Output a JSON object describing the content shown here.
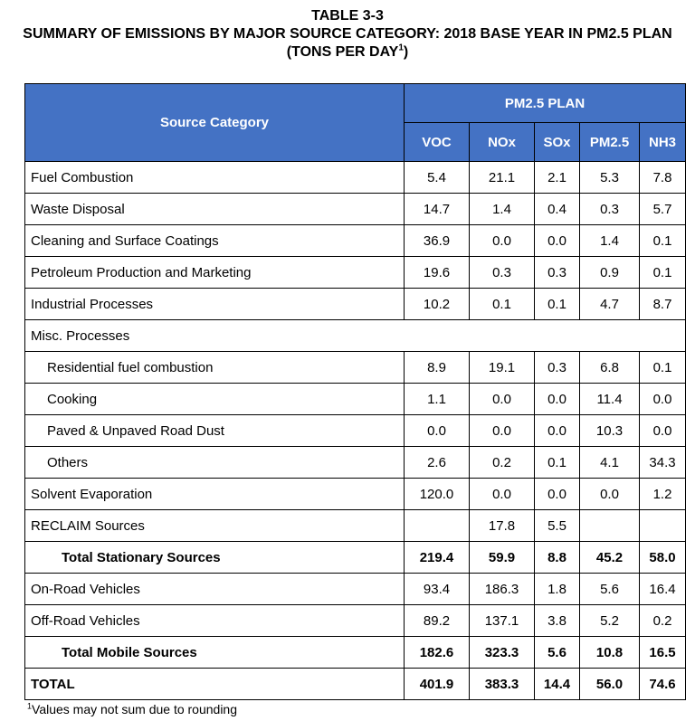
{
  "title": {
    "line1": "TABLE 3-3",
    "line2": "SUMMARY OF EMISSIONS BY MAJOR SOURCE CATEGORY: 2018 BASE YEAR IN PM2.5 PLAN",
    "line3_prefix": "(TONS PER DAY",
    "line3_sup": "1",
    "line3_suffix": ")"
  },
  "header": {
    "source_category": "Source Category",
    "group": "PM2.5 PLAN",
    "columns": [
      "VOC",
      "NOx",
      "SOx",
      "PM2.5",
      "NH3"
    ]
  },
  "rows": [
    {
      "label": "Fuel Combustion",
      "style": "cat",
      "values": [
        "5.4",
        "21.1",
        "2.1",
        "5.3",
        "7.8"
      ]
    },
    {
      "label": "Waste Disposal",
      "style": "cat",
      "values": [
        "14.7",
        "1.4",
        "0.4",
        "0.3",
        "5.7"
      ]
    },
    {
      "label": "Cleaning and Surface Coatings",
      "style": "cat",
      "values": [
        "36.9",
        "0.0",
        "0.0",
        "1.4",
        "0.1"
      ]
    },
    {
      "label": "Petroleum Production and Marketing",
      "style": "cat",
      "values": [
        "19.6",
        "0.3",
        "0.3",
        "0.9",
        "0.1"
      ]
    },
    {
      "label": "Industrial Processes",
      "style": "cat",
      "values": [
        "10.2",
        "0.1",
        "0.1",
        "4.7",
        "8.7"
      ]
    },
    {
      "label": "Misc. Processes",
      "style": "group",
      "values": []
    },
    {
      "label": "Residential fuel combustion",
      "style": "sub",
      "values": [
        "8.9",
        "19.1",
        "0.3",
        "6.8",
        "0.1"
      ]
    },
    {
      "label": "Cooking",
      "style": "sub",
      "values": [
        "1.1",
        "0.0",
        "0.0",
        "11.4",
        "0.0"
      ]
    },
    {
      "label": "Paved & Unpaved Road Dust",
      "style": "sub",
      "values": [
        "0.0",
        "0.0",
        "0.0",
        "10.3",
        "0.0"
      ]
    },
    {
      "label": "Others",
      "style": "sub",
      "values": [
        "2.6",
        "0.2",
        "0.1",
        "4.1",
        "34.3"
      ]
    },
    {
      "label": "Solvent Evaporation",
      "style": "cat",
      "values": [
        "120.0",
        "0.0",
        "0.0",
        "0.0",
        "1.2"
      ]
    },
    {
      "label": "RECLAIM Sources",
      "style": "cat",
      "values": [
        "",
        "17.8",
        "5.5",
        "",
        ""
      ]
    },
    {
      "label": "Total Stationary Sources",
      "style": "tot",
      "values": [
        "219.4",
        "59.9",
        "8.8",
        "45.2",
        "58.0"
      ]
    },
    {
      "label": "On-Road Vehicles",
      "style": "cat",
      "values": [
        "93.4",
        "186.3",
        "1.8",
        "5.6",
        "16.4"
      ]
    },
    {
      "label": "Off-Road Vehicles",
      "style": "cat",
      "values": [
        "89.2",
        "137.1",
        "3.8",
        "5.2",
        "0.2"
      ]
    },
    {
      "label": "Total Mobile Sources",
      "style": "tot",
      "values": [
        "182.6",
        "323.3",
        "5.6",
        "10.8",
        "16.5"
      ]
    },
    {
      "label": "TOTAL",
      "style": "grand",
      "values": [
        "401.9",
        "383.3",
        "14.4",
        "56.0",
        "74.6"
      ]
    }
  ],
  "footnote": {
    "sup": "1",
    "text": "Values may not sum due to rounding"
  },
  "colors": {
    "header_bg": "#4472c4",
    "header_text": "#ffffff"
  }
}
